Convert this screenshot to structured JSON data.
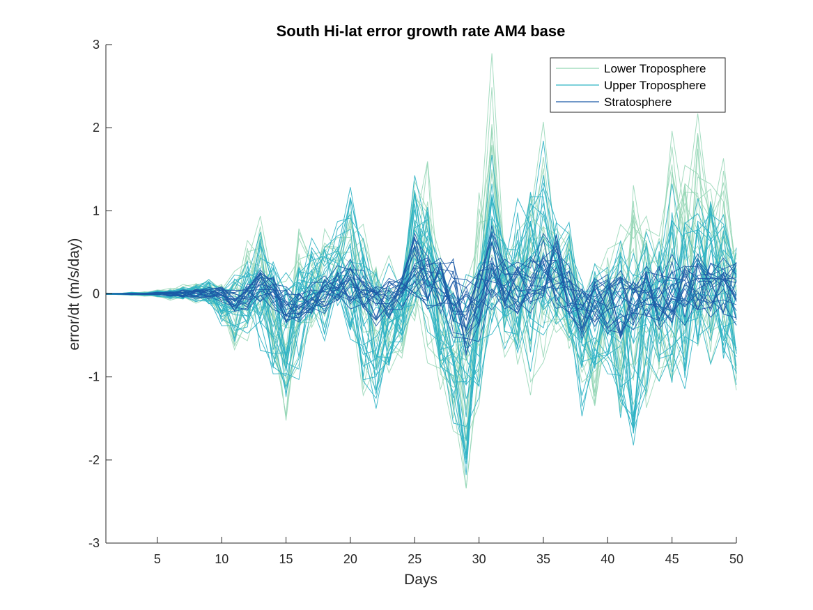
{
  "chart_data": {
    "type": "line",
    "title": "South Hi-lat error growth rate AM4 base",
    "xlabel": "Days",
    "ylabel": "error/dt (m/s/day)",
    "xlim": [
      1,
      50
    ],
    "ylim": [
      -3,
      3
    ],
    "xticks": [
      5,
      10,
      15,
      20,
      25,
      30,
      35,
      40,
      45,
      50
    ],
    "yticks": [
      -3,
      -2,
      -1,
      0,
      1,
      2,
      3
    ],
    "grid": false,
    "legend_position": "top-right",
    "x": [
      1,
      2,
      3,
      4,
      5,
      6,
      7,
      8,
      9,
      10,
      11,
      12,
      13,
      14,
      15,
      16,
      17,
      18,
      19,
      20,
      21,
      22,
      23,
      24,
      25,
      26,
      27,
      28,
      29,
      30,
      31,
      32,
      33,
      34,
      35,
      36,
      37,
      38,
      39,
      40,
      41,
      42,
      43,
      44,
      45,
      46,
      47,
      48,
      49,
      50
    ],
    "series": [
      {
        "name": "Lower Troposphere",
        "color": "#94d6b5",
        "lines": 20,
        "envelope_upper": [
          0.01,
          0.01,
          0.02,
          0.03,
          0.05,
          0.08,
          0.12,
          0.15,
          0.18,
          0.2,
          0.3,
          0.8,
          0.97,
          0.5,
          0.2,
          0.98,
          0.5,
          0.9,
          0.7,
          1.1,
          0.9,
          0.6,
          0.5,
          0.3,
          1.4,
          1.82,
          0.5,
          0.3,
          0.2,
          1.5,
          3.0,
          0.8,
          0.8,
          1.9,
          2.15,
          0.9,
          0.8,
          0.3,
          0.4,
          0.7,
          0.9,
          1.55,
          1.0,
          0.9,
          2.05,
          1.8,
          2.25,
          1.6,
          1.7,
          0.8
        ],
        "envelope_lower": [
          -0.01,
          -0.01,
          -0.02,
          -0.03,
          -0.05,
          -0.08,
          -0.1,
          -0.12,
          -0.15,
          -0.3,
          -0.8,
          -0.6,
          -0.4,
          -0.8,
          -1.68,
          -0.9,
          -0.5,
          -0.4,
          -0.2,
          -0.3,
          -1.57,
          -1.2,
          -1.1,
          -0.8,
          -0.5,
          -0.9,
          -1.5,
          -1.7,
          -2.58,
          -1.4,
          -1.2,
          -0.8,
          -1.0,
          -1.3,
          -1.1,
          -0.5,
          -0.8,
          -1.1,
          -1.5,
          -0.8,
          -1.7,
          -1.4,
          -1.6,
          -1.1,
          -1.5,
          -1.0,
          -0.9,
          -0.9,
          -1.1,
          -1.21
        ]
      },
      {
        "name": "Upper Troposphere",
        "color": "#2eb3c4",
        "lines": 24,
        "envelope_upper": [
          0.01,
          0.01,
          0.02,
          0.02,
          0.04,
          0.06,
          0.08,
          0.12,
          0.18,
          0.2,
          0.25,
          0.5,
          0.78,
          0.5,
          0.3,
          0.5,
          0.7,
          0.8,
          0.9,
          1.56,
          0.7,
          0.5,
          0.4,
          0.3,
          1.47,
          1.3,
          0.4,
          0.2,
          0.3,
          0.8,
          1.74,
          0.8,
          1.2,
          1.6,
          1.91,
          1.0,
          0.9,
          0.3,
          0.4,
          0.5,
          0.7,
          0.8,
          0.8,
          0.9,
          1.4,
          1.1,
          1.2,
          1.3,
          1.0,
          0.7
        ],
        "envelope_lower": [
          -0.01,
          -0.01,
          -0.02,
          -0.02,
          -0.04,
          -0.06,
          -0.08,
          -0.1,
          -0.15,
          -0.4,
          -0.65,
          -0.5,
          -0.8,
          -1.0,
          -1.5,
          -1.07,
          -0.5,
          -0.6,
          -0.3,
          -0.6,
          -1.2,
          -1.43,
          -1.0,
          -0.6,
          -0.3,
          -0.5,
          -1.0,
          -1.6,
          -2.41,
          -1.3,
          -0.9,
          -0.7,
          -0.9,
          -1.0,
          -0.8,
          -0.4,
          -0.7,
          -1.52,
          -1.1,
          -1.0,
          -1.7,
          -1.89,
          -1.4,
          -1.1,
          -1.6,
          -1.2,
          -0.8,
          -0.9,
          -1.0,
          -1.14
        ]
      },
      {
        "name": "Stratosphere",
        "color": "#1c5aa6",
        "lines": 20,
        "envelope_upper": [
          0.005,
          0.005,
          0.01,
          0.01,
          0.02,
          0.03,
          0.05,
          0.07,
          0.08,
          0.1,
          0.05,
          0.15,
          0.3,
          0.25,
          0.1,
          0.05,
          0.15,
          0.3,
          0.35,
          0.5,
          0.3,
          0.15,
          0.2,
          0.25,
          0.75,
          0.55,
          0.45,
          0.5,
          0.2,
          0.35,
          0.85,
          0.5,
          0.4,
          0.55,
          0.75,
          0.8,
          0.35,
          0.15,
          0.2,
          0.3,
          0.3,
          0.2,
          0.35,
          0.4,
          0.5,
          0.45,
          0.5,
          0.45,
          0.45,
          0.5
        ],
        "envelope_lower": [
          -0.005,
          -0.005,
          -0.01,
          -0.01,
          -0.02,
          -0.03,
          -0.05,
          -0.06,
          -0.08,
          -0.1,
          -0.25,
          -0.2,
          -0.15,
          -0.2,
          -0.4,
          -0.35,
          -0.3,
          -0.25,
          -0.15,
          -0.2,
          -0.3,
          -0.4,
          -0.35,
          -0.2,
          -0.1,
          -0.2,
          -0.35,
          -0.55,
          -0.85,
          -0.6,
          -0.3,
          -0.2,
          -0.3,
          -0.25,
          -0.2,
          -0.2,
          -0.35,
          -0.55,
          -0.45,
          -0.5,
          -0.6,
          -0.45,
          -0.4,
          -0.45,
          -0.5,
          -0.4,
          -0.3,
          -0.3,
          -0.35,
          -0.4
        ]
      }
    ]
  }
}
